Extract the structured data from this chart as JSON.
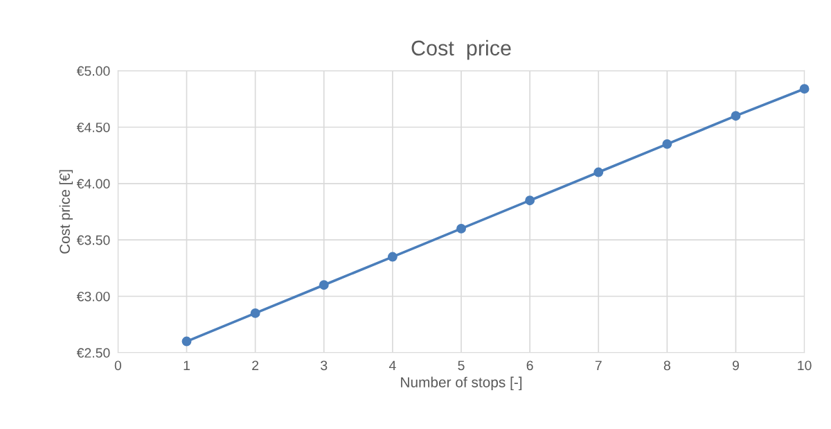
{
  "chart_data": {
    "type": "line",
    "title": "Cost  price",
    "xlabel": "Number of stops [-]",
    "ylabel": "Cost price [€]",
    "x": [
      1,
      2,
      3,
      4,
      5,
      6,
      7,
      8,
      9,
      10
    ],
    "series": [
      {
        "color": "#4a7ebb",
        "values": [
          2.6,
          2.85,
          3.1,
          3.35,
          3.6,
          3.85,
          4.1,
          4.35,
          4.6,
          4.84
        ]
      }
    ],
    "xlim": [
      0,
      10
    ],
    "xticks": [
      0,
      1,
      2,
      3,
      4,
      5,
      6,
      7,
      8,
      9,
      10
    ],
    "ylim": [
      2.5,
      5.0
    ],
    "yticks": [
      {
        "value": 2.5,
        "label": "€2.50"
      },
      {
        "value": 3.0,
        "label": "€3.00"
      },
      {
        "value": 3.5,
        "label": "€3.50"
      },
      {
        "value": 4.0,
        "label": "€4.00"
      },
      {
        "value": 4.5,
        "label": "€4.50"
      },
      {
        "value": 5.0,
        "label": "€5.00"
      }
    ],
    "grid": true,
    "marker": "circle",
    "line_style": "solid"
  }
}
